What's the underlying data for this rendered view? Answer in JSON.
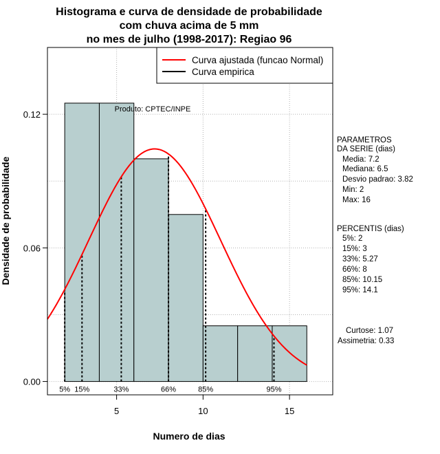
{
  "chart_data": {
    "type": "bar",
    "title_lines": [
      "Histograma e curva de densidade de probabilidade",
      "com chuva acima de 5 mm",
      "no mes de julho (1998-2017): Regiao 96"
    ],
    "xlabel": "Numero de dias",
    "ylabel": "Densidade de probabilidade",
    "xlim": [
      1.0,
      17.5
    ],
    "ylim": [
      -0.006,
      0.15
    ],
    "x_ticks": [
      5,
      10,
      15
    ],
    "y_ticks": [
      0.0,
      0.06,
      0.12
    ],
    "y_tick_labels": [
      "0.00",
      "0.06",
      "0.12"
    ],
    "grid": true,
    "bin_edges": [
      2,
      4,
      6,
      8,
      10,
      12,
      14,
      16
    ],
    "bar_values": [
      0.125,
      0.125,
      0.1,
      0.075,
      0.025,
      0.025,
      0.025
    ],
    "bar_color": "#b8cfcf",
    "curve_color": "#ff0000",
    "normal_fit": {
      "mean": 7.2,
      "sd": 3.82
    },
    "percentile_lines": [
      {
        "label": "5%",
        "x": 2
      },
      {
        "label": "15%",
        "x": 3
      },
      {
        "label": "33%",
        "x": 5.27
      },
      {
        "label": "66%",
        "x": 8
      },
      {
        "label": "85%",
        "x": 10.15
      },
      {
        "label": "95%",
        "x": 14.1
      }
    ],
    "legend": {
      "position": "top-right",
      "entries": [
        {
          "label": "Curva ajustada (funcao Normal)",
          "color": "#ff0000"
        },
        {
          "label": "Curva empirica",
          "color": "#000000"
        }
      ]
    },
    "annotation": "Produto: CPTEC/INPE"
  },
  "side_panel": {
    "params_header": "PARAMETROS",
    "params_subheader": "DA SERIE (dias)",
    "params": [
      "Media: 7.2",
      "Mediana: 6.5",
      "Desvio padrao: 3.82",
      "Min: 2",
      "Max: 16"
    ],
    "percentis_header": "PERCENTIS (dias)",
    "percentis": [
      "5%: 2",
      "15%: 3",
      "33%: 5.27",
      "66%: 8",
      "85%: 10.15",
      "95%: 14.1"
    ],
    "curtose": "Curtose: 1.07",
    "assimetria": "Assimetria: 0.33"
  }
}
